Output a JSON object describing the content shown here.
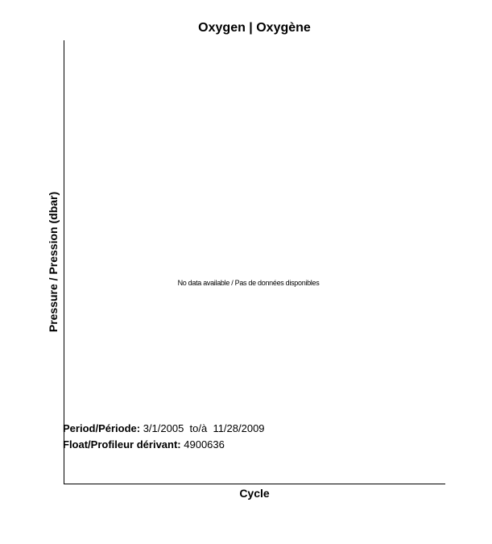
{
  "chart_data": {
    "type": "scatter",
    "title": "Oxygen | Oxygène",
    "xlabel": "Cycle",
    "ylabel": "Pressure / Pression (dbar)",
    "series": [],
    "annotations": {
      "no_data": "No data available / Pas de données disponibles",
      "period_label": "Period/Période:",
      "period_value": "3/1/2005  to/à  11/28/2009",
      "float_label": "Float/Profileur dérivant:",
      "float_value": "4900636"
    },
    "grid": false
  }
}
